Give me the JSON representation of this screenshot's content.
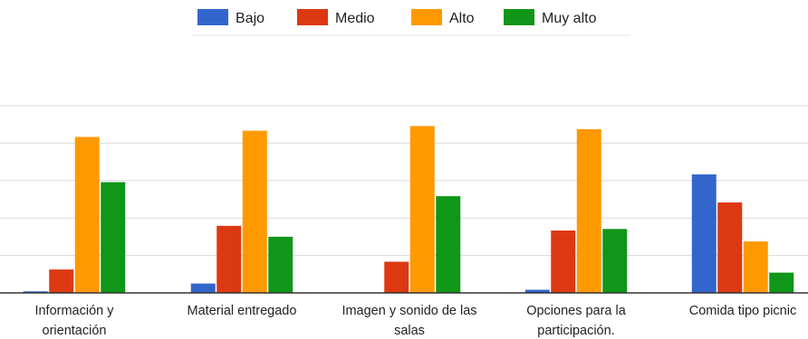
{
  "chart_data": {
    "type": "bar",
    "categories": [
      [
        "Información y",
        "orientación"
      ],
      [
        "Material entregado"
      ],
      [
        "Imagen y sonido de las",
        "salas"
      ],
      [
        "Opciones para la",
        "participación."
      ],
      [
        "Comida tipo picnic"
      ]
    ],
    "series": [
      {
        "name": "Bajo",
        "color": "#3366cc",
        "values": [
          1,
          6,
          0,
          2,
          76
        ]
      },
      {
        "name": "Medio",
        "color": "#dc3912",
        "values": [
          15,
          43,
          20,
          40,
          58
        ]
      },
      {
        "name": "Alto",
        "color": "#ff9900",
        "values": [
          100,
          104,
          107,
          105,
          33
        ]
      },
      {
        "name": "Muy alto",
        "color": "#109618",
        "values": [
          71,
          36,
          62,
          41,
          13
        ]
      }
    ],
    "ylim": [
      0,
      120
    ],
    "grid": true,
    "legend_position": "top-center",
    "gridline_color": "#d9d9d9",
    "axis_color": "#333333"
  }
}
